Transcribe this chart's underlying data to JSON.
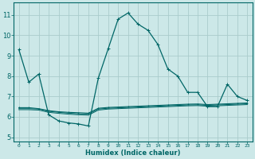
{
  "xlabel": "Humidex (Indice chaleur)",
  "background_color": "#cce8e8",
  "grid_color": "#aacccc",
  "line_color": "#006666",
  "xlim": [
    -0.5,
    23.5
  ],
  "ylim": [
    4.8,
    11.6
  ],
  "yticks": [
    5,
    6,
    7,
    8,
    9,
    10,
    11
  ],
  "xtick_labels": [
    "0",
    "1",
    "2",
    "3",
    "4",
    "5",
    "6",
    "7",
    "8",
    "9",
    "10",
    "11",
    "12",
    "13",
    "14",
    "15",
    "16",
    "17",
    "18",
    "19",
    "20",
    "21",
    "22",
    "23"
  ],
  "xtick_pos": [
    0,
    1,
    2,
    3,
    4,
    5,
    6,
    7,
    8,
    9,
    10,
    11,
    12,
    13,
    14,
    15,
    16,
    17,
    18,
    19,
    20,
    21,
    22,
    23
  ],
  "series1_x": [
    0,
    1,
    2,
    3,
    4,
    5,
    6,
    7,
    8,
    9,
    10,
    11,
    12,
    13,
    14,
    15,
    16,
    17,
    18,
    19,
    20,
    21,
    22,
    23
  ],
  "series1_y": [
    9.3,
    7.7,
    8.1,
    6.1,
    5.8,
    5.7,
    5.65,
    5.55,
    7.9,
    9.35,
    10.8,
    11.1,
    10.55,
    10.25,
    9.55,
    8.35,
    8.0,
    7.2,
    7.2,
    6.5,
    6.5,
    7.6,
    7.0,
    6.8
  ],
  "series2_x": [
    0,
    1,
    2,
    3,
    4,
    5,
    6,
    7,
    8,
    9,
    10,
    11,
    12,
    13,
    14,
    15,
    16,
    17,
    18,
    19,
    20,
    21,
    22,
    23
  ],
  "series2_y": [
    6.45,
    6.45,
    6.4,
    6.3,
    6.25,
    6.22,
    6.2,
    6.18,
    6.42,
    6.46,
    6.48,
    6.5,
    6.52,
    6.54,
    6.56,
    6.58,
    6.6,
    6.62,
    6.63,
    6.6,
    6.62,
    6.64,
    6.66,
    6.68
  ],
  "series3_x": [
    0,
    1,
    2,
    3,
    4,
    5,
    6,
    7,
    8,
    9,
    10,
    11,
    12,
    13,
    14,
    15,
    16,
    17,
    18,
    19,
    20,
    21,
    22,
    23
  ],
  "series3_y": [
    6.4,
    6.4,
    6.38,
    6.27,
    6.22,
    6.18,
    6.15,
    6.13,
    6.38,
    6.42,
    6.44,
    6.46,
    6.48,
    6.5,
    6.52,
    6.54,
    6.56,
    6.58,
    6.59,
    6.56,
    6.58,
    6.6,
    6.62,
    6.64
  ],
  "series4_x": [
    0,
    1,
    2,
    3,
    4,
    5,
    6,
    7,
    8,
    9,
    10,
    11,
    12,
    13,
    14,
    15,
    16,
    17,
    18,
    19,
    20,
    21,
    22,
    23
  ],
  "series4_y": [
    6.35,
    6.35,
    6.33,
    6.22,
    6.17,
    6.13,
    6.1,
    6.08,
    6.33,
    6.38,
    6.4,
    6.42,
    6.44,
    6.46,
    6.48,
    6.5,
    6.52,
    6.54,
    6.55,
    6.52,
    6.54,
    6.56,
    6.58,
    6.6
  ]
}
